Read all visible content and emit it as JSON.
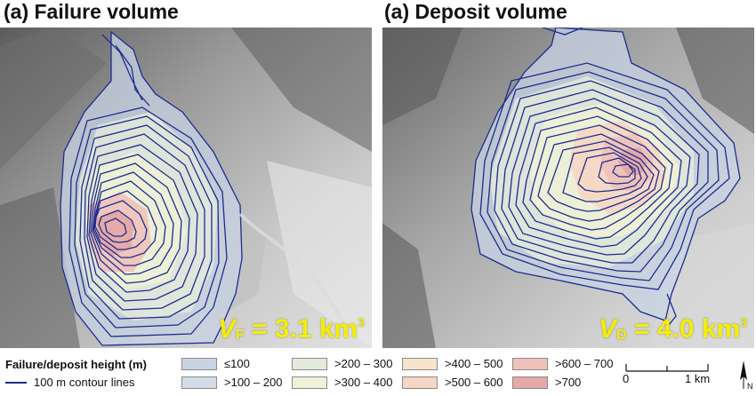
{
  "panels": [
    {
      "title": "(a) Failure volume",
      "label_symbol": "V",
      "label_sub": "F",
      "label_value": " = 3.1 km",
      "label_sup": "3"
    },
    {
      "title": "(a) Deposit volume",
      "label_symbol": "V",
      "label_sub": "D",
      "label_value": " = 4.0 km",
      "label_sup": "3"
    }
  ],
  "legend": {
    "title": "Failure/deposit height (m)",
    "contour_label": "100 m contour lines",
    "contour_color": "#1c2d8c",
    "classes": [
      {
        "label": "≤100",
        "color": "#c8d3e4"
      },
      {
        "label": ">100 – 200",
        "color": "#d3dce6"
      },
      {
        "label": ">200 – 300",
        "color": "#e5ebdc"
      },
      {
        "label": ">300 – 400",
        "color": "#f0f1d6"
      },
      {
        "label": ">400 – 500",
        "color": "#f6e4cd"
      },
      {
        "label": ">500 – 600",
        "color": "#f5d5c4"
      },
      {
        "label": ">600 – 700",
        "color": "#eec2bb"
      },
      {
        "label": ">700",
        "color": "#e4a9a8"
      }
    ]
  },
  "scale_bar": {
    "left_label": "0",
    "right_label": "1 km"
  },
  "north_arrow": {
    "label": "N"
  }
}
